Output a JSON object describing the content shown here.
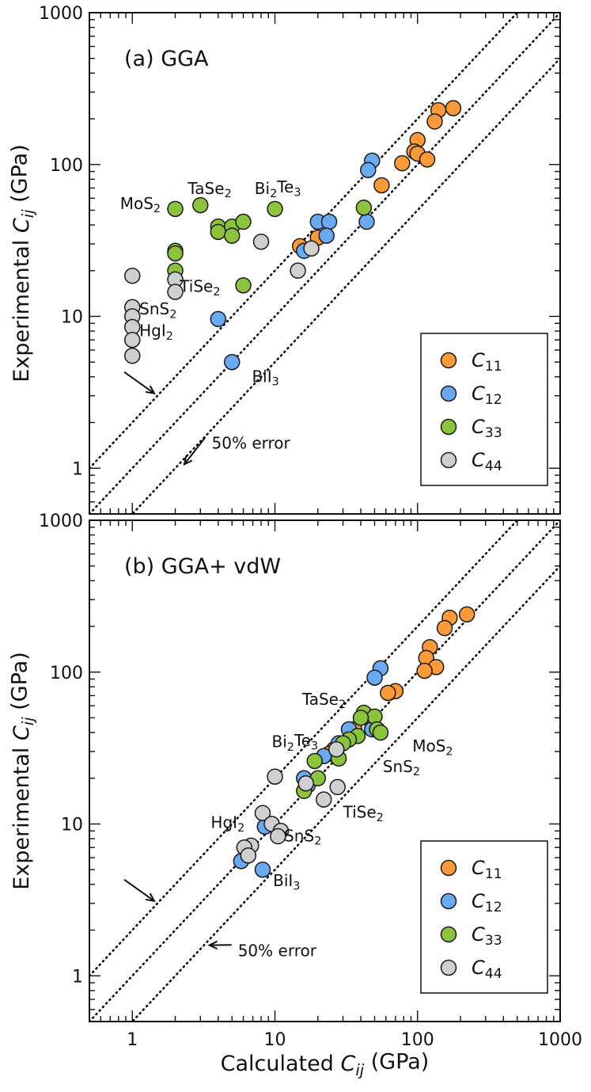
{
  "colors": {
    "C11": "#fb9a36",
    "C12": "#6aaaf2",
    "C33": "#8bc33d",
    "C44": "#cfcfcf",
    "edge": "#1a1a1a"
  },
  "chart_data": [
    {
      "type": "scatter",
      "title": "(a) GGA",
      "xlabel_main": "Calculated ",
      "xlabel_sym": "C",
      "xlabel_sub": "ij",
      "xlabel_unit": " (GPa)",
      "ylabel_main": "Experimental ",
      "ylabel_sym": "C",
      "ylabel_sub": "ij",
      "ylabel_unit": " (GPa)",
      "xscale": "log",
      "yscale": "log",
      "xlim": [
        0.5,
        1000
      ],
      "ylim": [
        0.5,
        1000
      ],
      "xticks": [
        "1",
        "10",
        "100",
        "1000"
      ],
      "yticks": [
        "1",
        "10",
        "100",
        "1000"
      ],
      "show_xticklabels": false,
      "legend": {
        "position": "bottom-right",
        "entries": [
          {
            "key": "C11",
            "sym": "C",
            "sub": "11"
          },
          {
            "key": "C12",
            "sym": "C",
            "sub": "12"
          },
          {
            "key": "C33",
            "sym": "C",
            "sub": "33"
          },
          {
            "key": "C44",
            "sym": "C",
            "sub": "44"
          }
        ]
      },
      "series": [
        {
          "name": "C11",
          "points": [
            [
              178,
              235
            ],
            [
              140,
              228
            ],
            [
              132,
              192
            ],
            [
              100,
              145
            ],
            [
              95,
              122
            ],
            [
              100,
              118
            ],
            [
              117,
              108
            ],
            [
              78,
              102
            ],
            [
              56,
              73
            ],
            [
              15,
              29
            ],
            [
              20,
              33
            ]
          ]
        },
        {
          "name": "C12",
          "points": [
            [
              48,
              106
            ],
            [
              45,
              92
            ],
            [
              44,
              42
            ],
            [
              20,
              42
            ],
            [
              24,
              42
            ],
            [
              23,
              34
            ],
            [
              16,
              27
            ],
            [
              4,
              9.6
            ],
            [
              5,
              5
            ]
          ]
        },
        {
          "name": "C33",
          "points": [
            [
              2,
              51
            ],
            [
              3,
              54
            ],
            [
              4,
              39
            ],
            [
              4,
              36
            ],
            [
              5,
              39
            ],
            [
              5,
              34
            ],
            [
              6,
              42
            ],
            [
              10,
              51
            ],
            [
              42,
              52
            ],
            [
              2,
              27
            ],
            [
              2,
              26
            ],
            [
              2,
              20
            ],
            [
              6,
              16
            ]
          ]
        },
        {
          "name": "C44",
          "points": [
            [
              1,
              18.5
            ],
            [
              1,
              11.5
            ],
            [
              1,
              10
            ],
            [
              1,
              8.5
            ],
            [
              1,
              7
            ],
            [
              1,
              5.5
            ],
            [
              2,
              17.5
            ],
            [
              2,
              14.5
            ],
            [
              8,
              31
            ],
            [
              14.5,
              20
            ],
            [
              18,
              28
            ]
          ]
        }
      ],
      "annotations": [
        {
          "text_pre": "MoS",
          "sub": "2",
          "text_post": "",
          "at": [
            0.82,
            51
          ]
        },
        {
          "text_pre": "TaSe",
          "sub": "2",
          "text_post": "",
          "at": [
            2.45,
            64
          ]
        },
        {
          "text_pre": "Bi",
          "sub": "2",
          "text_post": "Te3",
          "at": [
            7.2,
            64
          ]
        },
        {
          "text_pre": "TiSe",
          "sub": "2",
          "text_post": "",
          "at": [
            2.15,
            14.5
          ]
        },
        {
          "text_pre": "SnS",
          "sub": "2",
          "text_post": "",
          "at": [
            1.12,
            10.3
          ]
        },
        {
          "text_pre": "HgI",
          "sub": "2",
          "text_post": "",
          "at": [
            1.12,
            7.4
          ]
        },
        {
          "text_pre": "BiI",
          "sub": "3",
          "text_post": "",
          "at": [
            6.9,
            3.7
          ]
        },
        {
          "text_pre": "50% error",
          "sub": "",
          "text_post": "",
          "at": [
            3.6,
            1.35
          ]
        }
      ]
    },
    {
      "type": "scatter",
      "title": "(b) GGA+ vdW",
      "xlabel_main": "Calculated ",
      "xlabel_sym": "C",
      "xlabel_sub": "ij",
      "xlabel_unit": " (GPa)",
      "ylabel_main": "Experimental ",
      "ylabel_sym": "C",
      "ylabel_sub": "ij",
      "ylabel_unit": " (GPa)",
      "xscale": "log",
      "yscale": "log",
      "xlim": [
        0.5,
        1000
      ],
      "ylim": [
        0.5,
        1000
      ],
      "xticks": [
        "1",
        "10",
        "100",
        "1000"
      ],
      "yticks": [
        "1",
        "10",
        "100",
        "1000"
      ],
      "show_xticklabels": true,
      "legend": {
        "position": "bottom-right",
        "entries": [
          {
            "key": "C11",
            "sym": "C",
            "sub": "11"
          },
          {
            "key": "C12",
            "sym": "C",
            "sub": "12"
          },
          {
            "key": "C33",
            "sym": "C",
            "sub": "33"
          },
          {
            "key": "C44",
            "sym": "C",
            "sub": "44"
          }
        ]
      },
      "series": [
        {
          "name": "C11",
          "points": [
            [
              222,
              240
            ],
            [
              168,
              228
            ],
            [
              155,
              195
            ],
            [
              122,
              146
            ],
            [
              115,
              124
            ],
            [
              135,
              108
            ],
            [
              112,
              102
            ],
            [
              70,
              75
            ],
            [
              62,
              73
            ],
            [
              45,
              50
            ],
            [
              36,
              42
            ],
            [
              26,
              31
            ],
            [
              24,
              29
            ]
          ]
        },
        {
          "name": "C12",
          "points": [
            [
              55,
              106
            ],
            [
              50,
              92
            ],
            [
              48,
              42
            ],
            [
              33,
              42
            ],
            [
              28,
              34
            ],
            [
              22,
              28
            ],
            [
              16,
              20
            ],
            [
              17,
              18
            ],
            [
              8.5,
              9.6
            ],
            [
              5.8,
              5.7
            ],
            [
              8.2,
              5
            ]
          ]
        },
        {
          "name": "C33",
          "points": [
            [
              42,
              54
            ],
            [
              50,
              51
            ],
            [
              40,
              50
            ],
            [
              52,
              42
            ],
            [
              55,
              40
            ],
            [
              38,
              38
            ],
            [
              33,
              36
            ],
            [
              30,
              34
            ],
            [
              28,
              27
            ],
            [
              19,
              26
            ],
            [
              20,
              20
            ],
            [
              16,
              16.5
            ]
          ]
        },
        {
          "name": "C44",
          "points": [
            [
              10,
              20.5
            ],
            [
              16.5,
              18.5
            ],
            [
              27,
              31
            ],
            [
              27.5,
              17.5
            ],
            [
              22,
              14.5
            ],
            [
              8.2,
              11.8
            ],
            [
              9.5,
              10
            ],
            [
              11,
              9
            ],
            [
              10.5,
              8.3
            ],
            [
              6.8,
              7.2
            ],
            [
              6.1,
              7
            ],
            [
              6.5,
              6.2
            ]
          ]
        }
      ],
      "annotations": [
        {
          "text_pre": "TaSe",
          "sub": "2",
          "text_post": "",
          "at": [
            15.5,
            61
          ]
        },
        {
          "text_pre": "Bi",
          "sub": "2",
          "text_post": "Te3",
          "at": [
            9.5,
            32
          ]
        },
        {
          "text_pre": "MoS",
          "sub": "2",
          "text_post": "",
          "at": [
            92,
            30
          ]
        },
        {
          "text_pre": "SnS",
          "sub": "2",
          "text_post": "",
          "at": [
            57,
            22
          ]
        },
        {
          "text_pre": "TiSe",
          "sub": "2",
          "text_post": "",
          "at": [
            30,
            11
          ]
        },
        {
          "text_pre": "HgI",
          "sub": "2",
          "text_post": "",
          "at": [
            3.55,
            9.4
          ]
        },
        {
          "text_pre": "SnS",
          "sub": "2",
          "text_post": "",
          "at": [
            11.6,
            7.7
          ]
        },
        {
          "text_pre": "BiI",
          "sub": "3",
          "text_post": "",
          "at": [
            9.7,
            3.9
          ]
        },
        {
          "text_pre": "50% error",
          "sub": "",
          "text_post": "",
          "at": [
            5.5,
            1.35
          ]
        }
      ]
    }
  ]
}
